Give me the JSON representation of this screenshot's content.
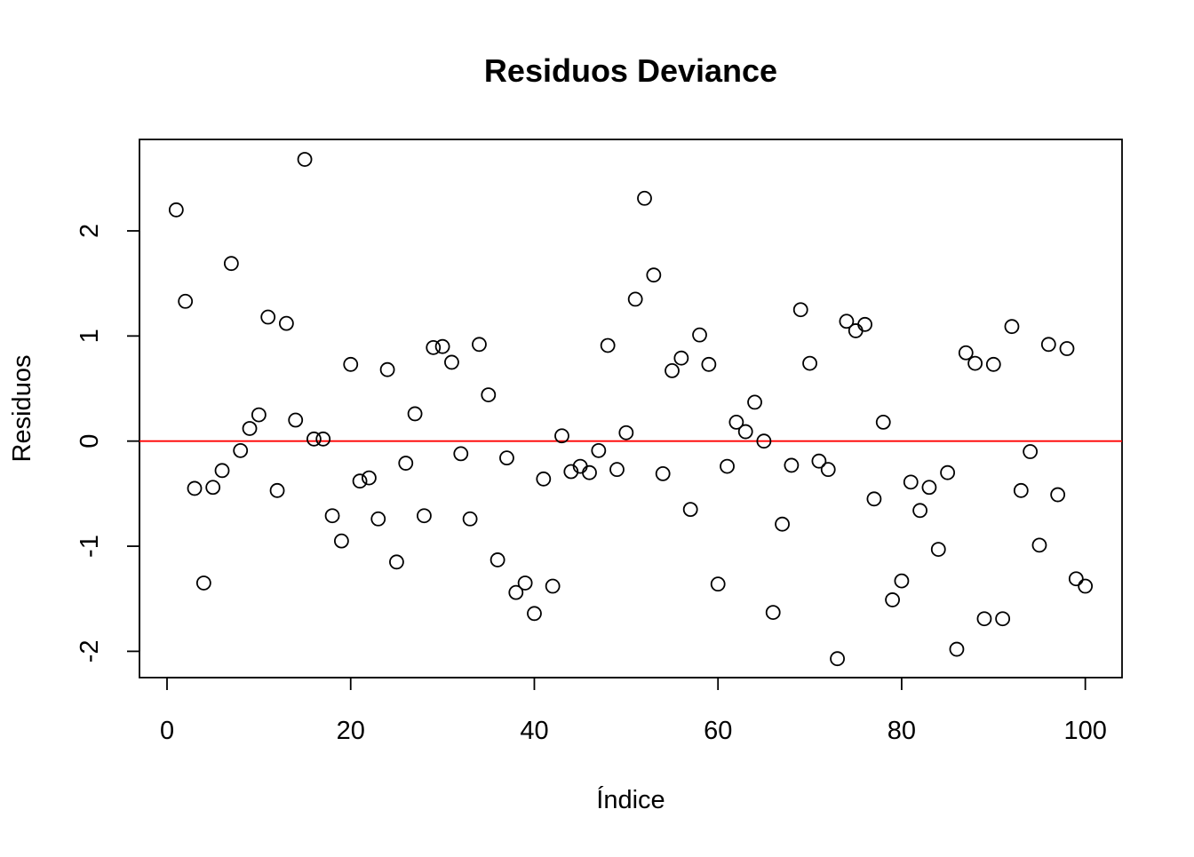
{
  "chart_data": {
    "type": "scatter",
    "title": "Residuos Deviance",
    "xlabel": "Índice",
    "ylabel": "Residuos",
    "xlim": [
      -3,
      104
    ],
    "ylim": [
      -2.25,
      2.87
    ],
    "xticks": [
      0,
      20,
      40,
      60,
      80,
      100
    ],
    "yticks": [
      -2,
      -1,
      0,
      1,
      2
    ],
    "grid": false,
    "reference_line": {
      "y": 0,
      "color": "#ff0000"
    },
    "series": [
      {
        "color": "#000000",
        "marker": "open-circle",
        "x": [
          1,
          2,
          3,
          4,
          5,
          6,
          7,
          8,
          9,
          10,
          11,
          12,
          13,
          14,
          15,
          16,
          17,
          18,
          19,
          20,
          21,
          22,
          23,
          24,
          25,
          26,
          27,
          28,
          29,
          30,
          31,
          32,
          33,
          34,
          35,
          36,
          37,
          38,
          39,
          40,
          41,
          42,
          43,
          44,
          45,
          46,
          47,
          48,
          49,
          50,
          51,
          52,
          53,
          54,
          55,
          56,
          57,
          58,
          59,
          60,
          61,
          62,
          63,
          64,
          65,
          66,
          67,
          68,
          69,
          70,
          71,
          72,
          73,
          74,
          75,
          76,
          77,
          78,
          79,
          80,
          81,
          82,
          83,
          84,
          85,
          86,
          87,
          88,
          89,
          90,
          91,
          92,
          93,
          94,
          95,
          96,
          97,
          98,
          99,
          100
        ],
        "y": [
          2.2,
          1.33,
          -0.45,
          -1.35,
          -0.44,
          -0.28,
          1.69,
          -0.09,
          0.12,
          0.25,
          1.18,
          -0.47,
          1.12,
          0.2,
          2.68,
          0.02,
          0.02,
          -0.71,
          -0.95,
          0.73,
          -0.38,
          -0.35,
          -0.74,
          0.68,
          -1.15,
          -0.21,
          0.26,
          -0.71,
          0.89,
          0.9,
          0.75,
          -0.12,
          -0.74,
          0.92,
          0.44,
          -1.13,
          -0.16,
          -1.44,
          -1.35,
          -1.64,
          -0.36,
          -1.38,
          0.05,
          -0.29,
          -0.24,
          -0.3,
          -0.09,
          0.91,
          -0.27,
          0.08,
          1.35,
          2.31,
          1.58,
          -0.31,
          0.67,
          0.79,
          -0.65,
          1.01,
          0.73,
          -1.36,
          -0.24,
          0.18,
          0.09,
          0.37,
          0.0,
          -1.63,
          -0.79,
          -0.23,
          1.25,
          0.74,
          -0.19,
          -0.27,
          -2.07,
          1.14,
          1.05,
          1.11,
          -0.55,
          0.18,
          -1.51,
          -1.33,
          -0.39,
          -0.66,
          -0.44,
          -1.03,
          -0.3,
          -1.98,
          0.84,
          0.74,
          -1.69,
          0.73,
          -1.69,
          1.09,
          -0.47,
          -0.1,
          -0.99,
          0.92,
          -0.51,
          0.88,
          -1.31,
          -1.38
        ]
      }
    ]
  }
}
